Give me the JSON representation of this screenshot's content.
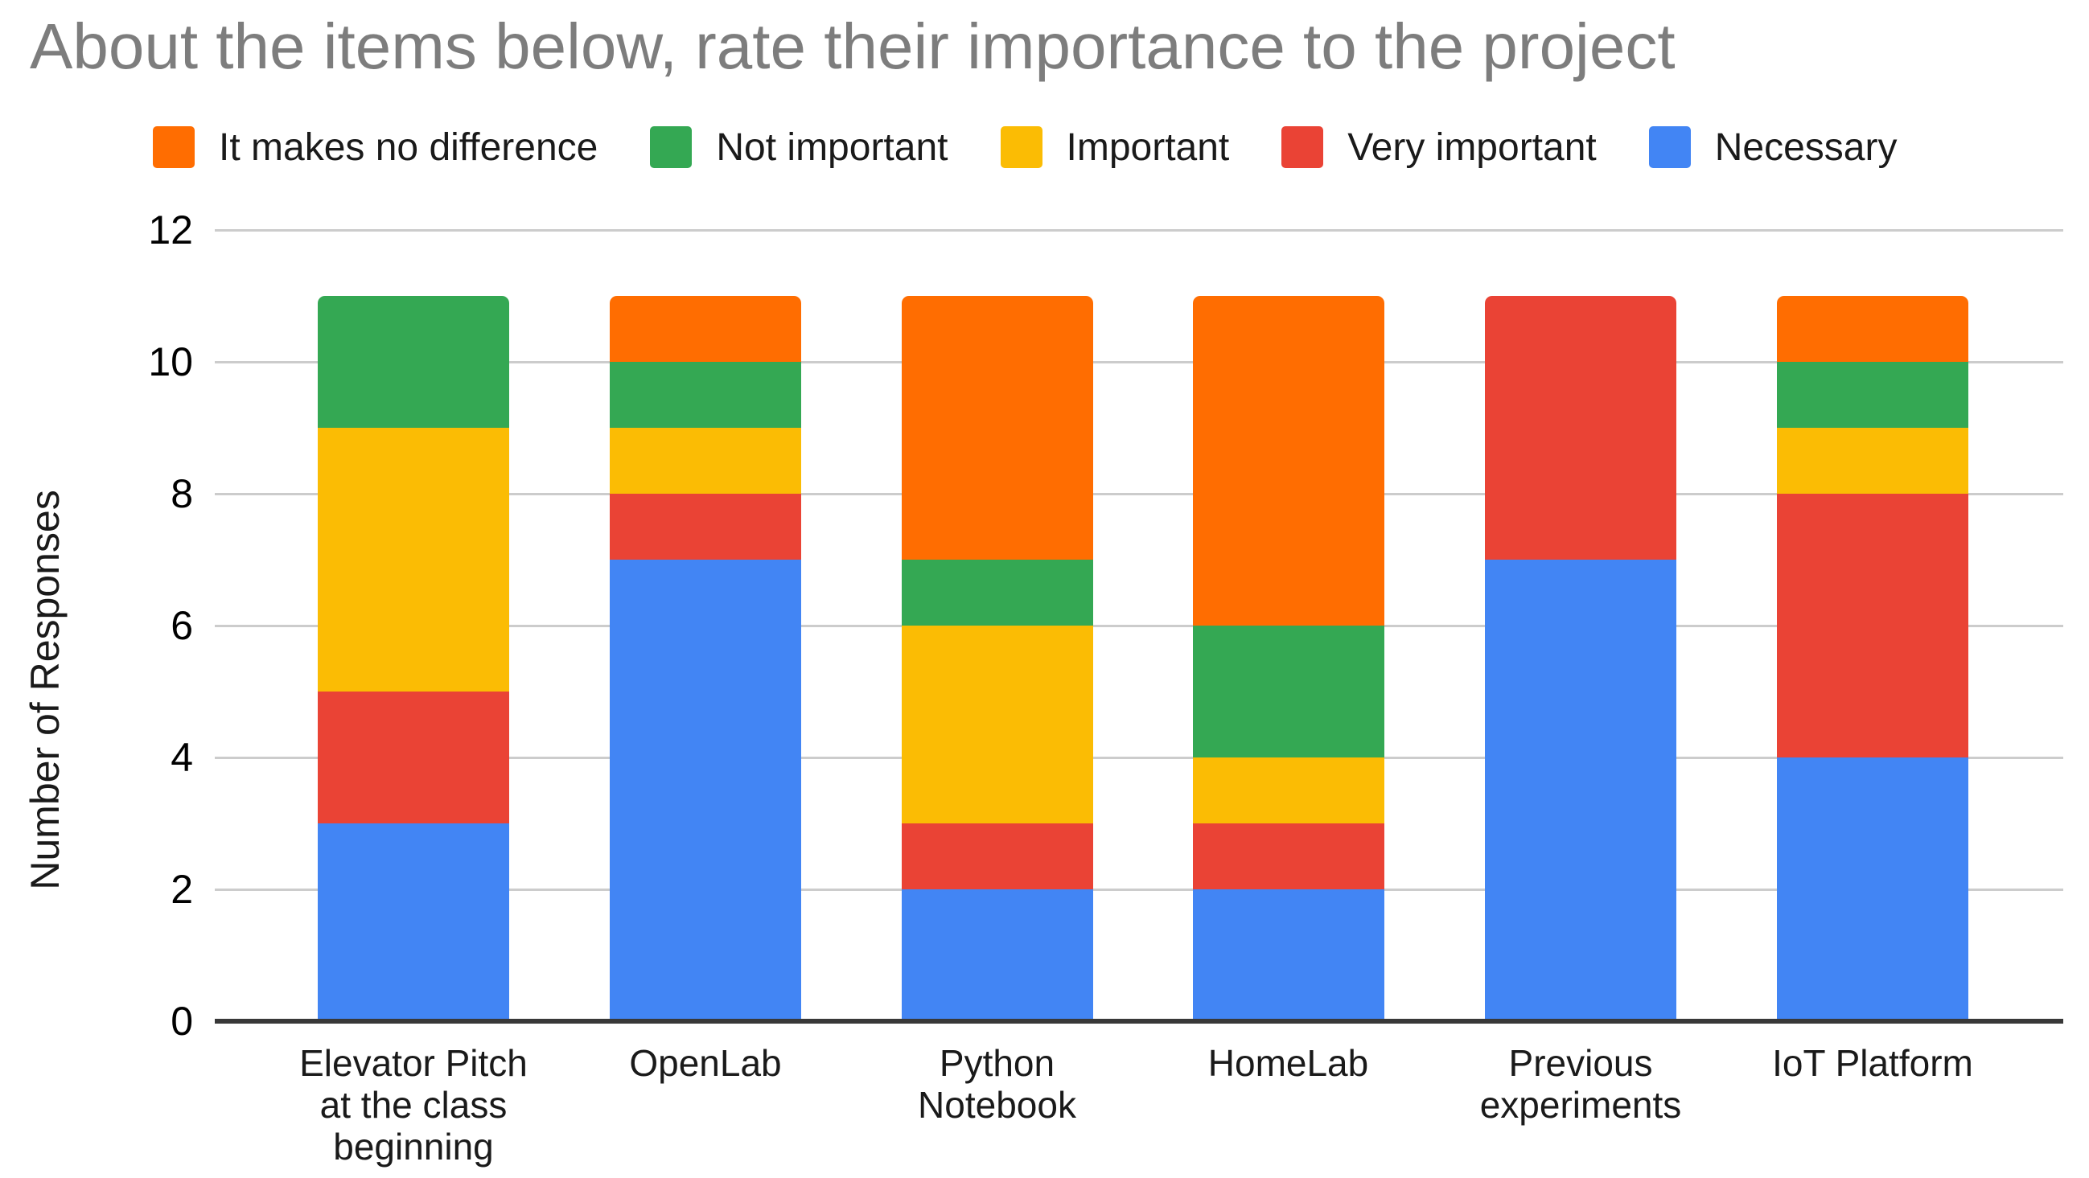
{
  "chart_data": {
    "type": "bar",
    "stacked": true,
    "title": "About the items below, rate their importance to the project",
    "ylabel": "Number of Responses",
    "xlabel": "",
    "ylim": [
      0,
      12
    ],
    "yticks": [
      0,
      2,
      4,
      6,
      8,
      10,
      12
    ],
    "grid": true,
    "legend_position": "top",
    "legend": [
      {
        "label": "It makes no difference",
        "color": "#FF6D01"
      },
      {
        "label": "Not important",
        "color": "#34A853"
      },
      {
        "label": "Important",
        "color": "#FBBC04"
      },
      {
        "label": "Very important",
        "color": "#EA4335"
      },
      {
        "label": "Necessary",
        "color": "#4285F4"
      }
    ],
    "categories": [
      "Elevator Pitch\nat the class\nbeginning",
      "OpenLab",
      "Python\nNotebook",
      "HomeLab",
      "Previous\nexperiments",
      "IoT Platform"
    ],
    "series": [
      {
        "name": "Necessary",
        "color": "#4285F4",
        "values": [
          3,
          7,
          2,
          2,
          7,
          4
        ]
      },
      {
        "name": "Very important",
        "color": "#EA4335",
        "values": [
          2,
          1,
          1,
          1,
          4,
          4
        ]
      },
      {
        "name": "Important",
        "color": "#FBBC04",
        "values": [
          4,
          1,
          3,
          1,
          0,
          1
        ]
      },
      {
        "name": "Not important",
        "color": "#34A853",
        "values": [
          2,
          1,
          1,
          2,
          0,
          1
        ]
      },
      {
        "name": "It makes no difference",
        "color": "#FF6D01",
        "values": [
          0,
          1,
          4,
          5,
          0,
          1
        ]
      }
    ],
    "totals": [
      11,
      11,
      11,
      11,
      11,
      11
    ]
  },
  "style": {
    "title_color": "#7D7D7D",
    "gridline_color": "#CCCCCC",
    "axis_line_color": "#383838",
    "label_color": "#000000",
    "background": "#FFFFFF"
  }
}
